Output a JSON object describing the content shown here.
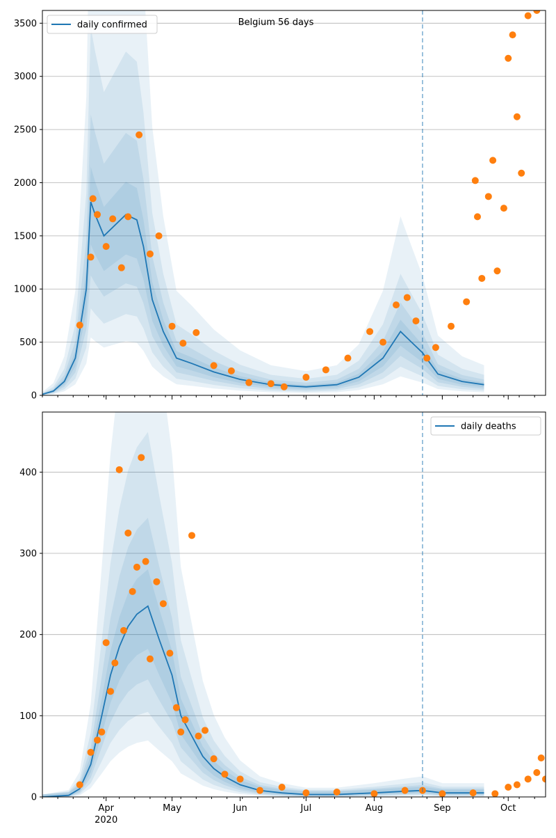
{
  "figure": {
    "title": "Belgium 56 days",
    "forecast_split_date": "2020-08-23",
    "colors": {
      "median": "#1f77b4",
      "band": "#1f77b4",
      "observed": "#ff7f0e",
      "split_line": "#1f77b4"
    },
    "x_tick_labels": [
      "Apr",
      "May",
      "Jun",
      "Jul",
      "Aug",
      "Sep",
      "Oct"
    ],
    "x_year_label": "2020"
  },
  "chart_data": [
    {
      "type": "line",
      "panel": "top",
      "legend": "daily confirmed",
      "legend_position": "upper left",
      "show_title": true,
      "xlim": [
        "2020-03-03",
        "2020-10-18"
      ],
      "ylim": [
        0,
        3620
      ],
      "yticks": [
        0,
        500,
        1000,
        1500,
        2000,
        2500,
        3000,
        3500
      ],
      "grid": "y",
      "series": [
        {
          "name": "daily confirmed",
          "kind": "median",
          "x": [
            "2020-03-03",
            "2020-03-08",
            "2020-03-13",
            "2020-03-18",
            "2020-03-23",
            "2020-03-25",
            "2020-03-27",
            "2020-03-31",
            "2020-04-05",
            "2020-04-10",
            "2020-04-15",
            "2020-04-18",
            "2020-04-22",
            "2020-04-27",
            "2020-05-03",
            "2020-05-10",
            "2020-05-20",
            "2020-06-01",
            "2020-06-15",
            "2020-07-01",
            "2020-07-15",
            "2020-07-25",
            "2020-08-05",
            "2020-08-13",
            "2020-08-18",
            "2020-08-23",
            "2020-08-30",
            "2020-09-10",
            "2020-09-20"
          ],
          "y": [
            10,
            40,
            130,
            350,
            1000,
            1820,
            1700,
            1500,
            1600,
            1700,
            1650,
            1400,
            900,
            600,
            350,
            300,
            220,
            150,
            100,
            80,
            100,
            170,
            350,
            600,
            500,
            400,
            200,
            130,
            100
          ]
        },
        {
          "name": "daily confirmed",
          "kind": "observed",
          "x": [
            "2020-03-20",
            "2020-03-25",
            "2020-03-26",
            "2020-03-28",
            "2020-04-01",
            "2020-04-04",
            "2020-04-08",
            "2020-04-11",
            "2020-04-16",
            "2020-04-21",
            "2020-04-25",
            "2020-05-01",
            "2020-05-06",
            "2020-05-12",
            "2020-05-20",
            "2020-05-28",
            "2020-06-05",
            "2020-06-15",
            "2020-06-21",
            "2020-07-01",
            "2020-07-10",
            "2020-07-20",
            "2020-07-30",
            "2020-08-05",
            "2020-08-11",
            "2020-08-16",
            "2020-08-20",
            "2020-08-25",
            "2020-08-29",
            "2020-09-05",
            "2020-09-12",
            "2020-09-16",
            "2020-09-17",
            "2020-09-19",
            "2020-09-22",
            "2020-09-24",
            "2020-09-26",
            "2020-09-29",
            "2020-10-01",
            "2020-10-03",
            "2020-10-05",
            "2020-10-07",
            "2020-10-10",
            "2020-10-14"
          ],
          "y": [
            660,
            1300,
            1850,
            1700,
            1400,
            1660,
            1200,
            1680,
            2450,
            1330,
            1500,
            650,
            490,
            590,
            280,
            230,
            120,
            110,
            80,
            170,
            240,
            350,
            600,
            500,
            850,
            920,
            700,
            350,
            450,
            650,
            880,
            2020,
            1680,
            1100,
            1870,
            2210,
            1170,
            1760,
            3170,
            3390,
            2620,
            2090,
            3570,
            3620
          ]
        }
      ]
    },
    {
      "type": "line",
      "panel": "bottom",
      "legend": "daily deaths",
      "legend_position": "upper right",
      "show_title": false,
      "xlim": [
        "2020-03-03",
        "2020-10-18"
      ],
      "ylim": [
        0,
        474
      ],
      "yticks": [
        0,
        100,
        200,
        300,
        400
      ],
      "grid": "y",
      "series": [
        {
          "name": "daily deaths",
          "kind": "median",
          "x": [
            "2020-03-03",
            "2020-03-15",
            "2020-03-20",
            "2020-03-25",
            "2020-03-30",
            "2020-04-03",
            "2020-04-07",
            "2020-04-11",
            "2020-04-15",
            "2020-04-20",
            "2020-04-25",
            "2020-05-01",
            "2020-05-05",
            "2020-05-10",
            "2020-05-15",
            "2020-05-20",
            "2020-05-25",
            "2020-06-01",
            "2020-06-10",
            "2020-06-20",
            "2020-07-01",
            "2020-07-15",
            "2020-08-01",
            "2020-08-15",
            "2020-08-23",
            "2020-09-01",
            "2020-09-20"
          ],
          "y": [
            0,
            2,
            10,
            40,
            100,
            150,
            185,
            210,
            225,
            235,
            195,
            150,
            100,
            75,
            50,
            35,
            25,
            15,
            8,
            5,
            3,
            3,
            5,
            7,
            8,
            5,
            5
          ]
        },
        {
          "name": "daily deaths",
          "kind": "observed",
          "x": [
            "2020-03-20",
            "2020-03-25",
            "2020-03-28",
            "2020-03-30",
            "2020-04-01",
            "2020-04-03",
            "2020-04-05",
            "2020-04-07",
            "2020-04-09",
            "2020-04-11",
            "2020-04-13",
            "2020-04-15",
            "2020-04-17",
            "2020-04-19",
            "2020-04-21",
            "2020-04-24",
            "2020-04-27",
            "2020-04-30",
            "2020-05-03",
            "2020-05-05",
            "2020-05-07",
            "2020-05-10",
            "2020-05-13",
            "2020-05-16",
            "2020-05-20",
            "2020-05-25",
            "2020-06-01",
            "2020-06-10",
            "2020-06-20",
            "2020-07-01",
            "2020-07-15",
            "2020-08-01",
            "2020-08-15",
            "2020-08-23",
            "2020-09-01",
            "2020-09-15",
            "2020-09-25",
            "2020-10-01",
            "2020-10-05",
            "2020-10-10",
            "2020-10-14",
            "2020-10-16",
            "2020-10-18"
          ],
          "y": [
            15,
            55,
            70,
            80,
            190,
            130,
            165,
            403,
            205,
            325,
            253,
            283,
            418,
            290,
            170,
            265,
            238,
            177,
            110,
            80,
            95,
            322,
            75,
            82,
            47,
            28,
            22,
            8,
            12,
            5,
            6,
            4,
            8,
            8,
            4,
            5,
            4,
            12,
            15,
            22,
            30,
            48,
            22
          ]
        }
      ]
    }
  ]
}
